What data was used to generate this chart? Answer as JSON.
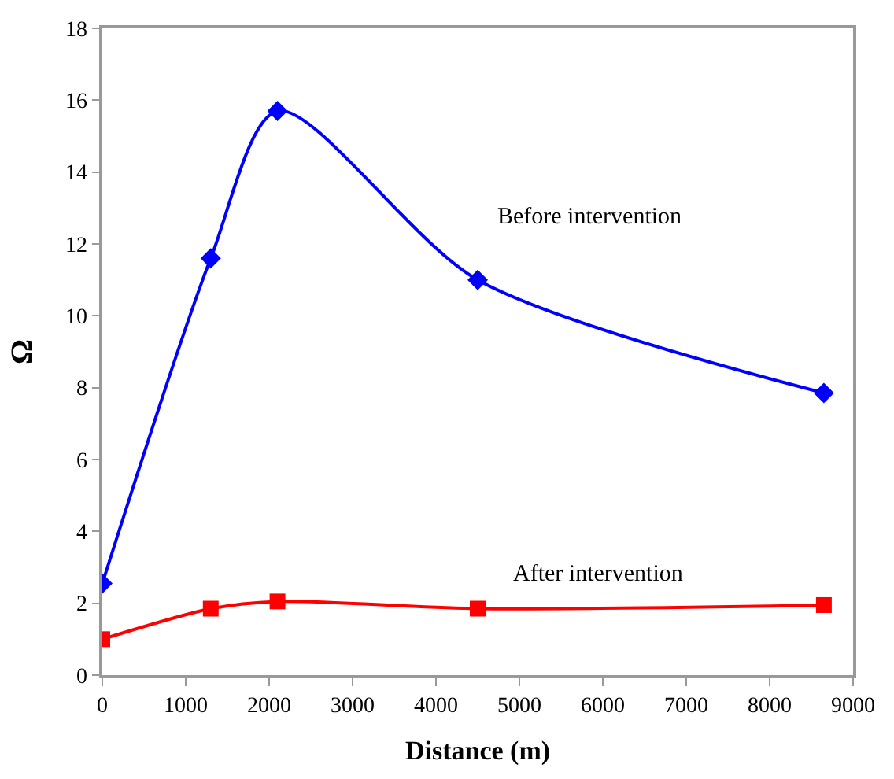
{
  "chart_data": {
    "type": "line",
    "xlabel": "Distance (m)",
    "ylabel": "Ω",
    "x": [
      0,
      1300,
      2100,
      4500,
      8650
    ],
    "series": [
      {
        "name": "Before intervention",
        "color": "#0000ff",
        "marker": "diamond",
        "values": [
          2.55,
          11.6,
          15.7,
          11.0,
          7.85
        ]
      },
      {
        "name": "After intervention",
        "color": "#ff0000",
        "marker": "square",
        "values": [
          1.0,
          1.85,
          2.05,
          1.85,
          1.95
        ]
      }
    ],
    "xlim": [
      0,
      9000
    ],
    "xticks": [
      0,
      1000,
      2000,
      3000,
      4000,
      5000,
      6000,
      7000,
      8000,
      9000
    ],
    "ylim": [
      0,
      18
    ],
    "yticks": [
      0,
      2,
      4,
      6,
      8,
      10,
      12,
      14,
      16,
      18
    ],
    "legend": false,
    "line_style": "solid"
  }
}
